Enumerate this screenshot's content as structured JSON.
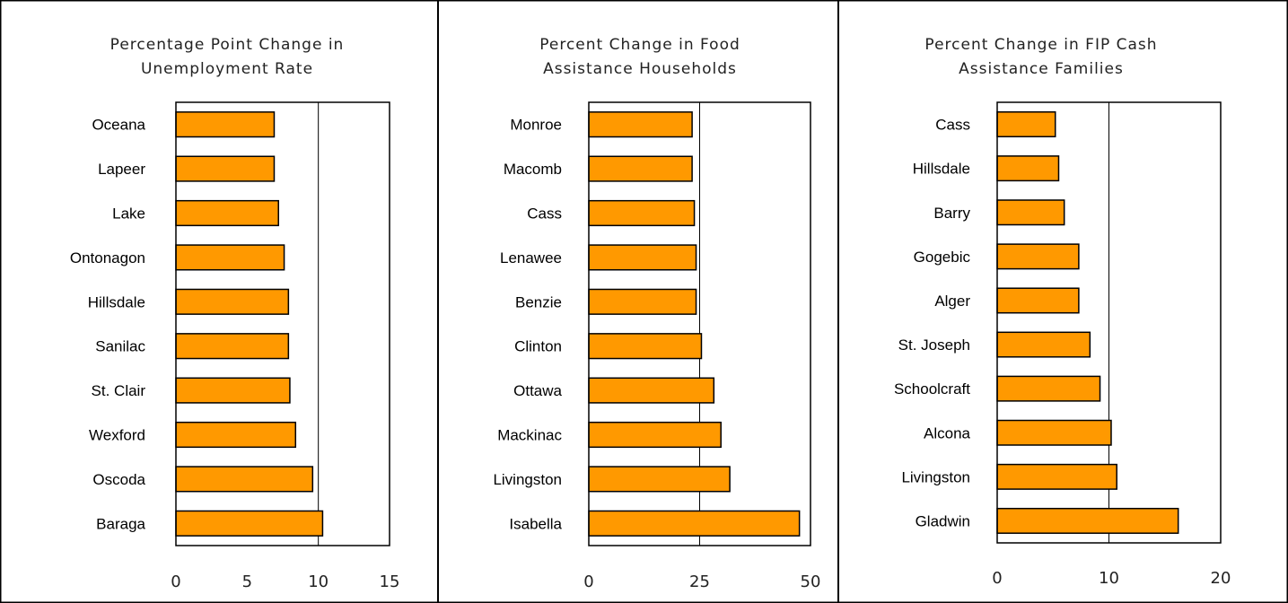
{
  "chart_data": [
    {
      "type": "bar",
      "orientation": "horizontal",
      "title": [
        "Percentage Point Change in",
        "Unemployment Rate"
      ],
      "categories": [
        "Oceana",
        "Lapeer",
        "Lake",
        "Ontonagon",
        "Hillsdale",
        "Sanilac",
        "St. Clair",
        "Wexford",
        "Oscoda",
        "Baraga"
      ],
      "values": [
        6.9,
        6.9,
        7.2,
        7.6,
        7.9,
        7.9,
        8.0,
        8.4,
        9.6,
        10.3
      ],
      "xlim": [
        0,
        15
      ],
      "xticks": [
        "0",
        "5",
        "10",
        "15"
      ],
      "gridlines": [
        10
      ],
      "bar_color": "#ff9900"
    },
    {
      "type": "bar",
      "orientation": "horizontal",
      "title": [
        "Percent Change in Food",
        "Assistance Households"
      ],
      "categories": [
        "Monroe",
        "Macomb",
        "Cass",
        "Lenawee",
        "Benzie",
        "Clinton",
        "Ottawa",
        "Mackinac",
        "Livingston",
        "Isabella"
      ],
      "values": [
        23.3,
        23.3,
        23.8,
        24.2,
        24.2,
        25.4,
        28.2,
        29.8,
        31.8,
        47.5
      ],
      "xlim": [
        0,
        50
      ],
      "xticks": [
        "0",
        "25",
        "50"
      ],
      "gridlines": [
        25
      ],
      "bar_color": "#ff9900"
    },
    {
      "type": "bar",
      "orientation": "horizontal",
      "title": [
        "Percent Change in FIP Cash",
        "Assistance Families"
      ],
      "categories": [
        "Cass",
        "Hillsdale",
        "Barry",
        "Gogebic",
        "Alger",
        "St. Joseph",
        "Schoolcraft",
        "Alcona",
        "Livingston",
        "Gladwin"
      ],
      "values": [
        5.2,
        5.5,
        6.0,
        7.3,
        7.3,
        8.3,
        9.2,
        10.2,
        10.7,
        16.2
      ],
      "xlim": [
        0,
        20
      ],
      "xticks": [
        "0",
        "10",
        "20"
      ],
      "gridlines": [
        10
      ],
      "bar_color": "#ff9900"
    }
  ]
}
